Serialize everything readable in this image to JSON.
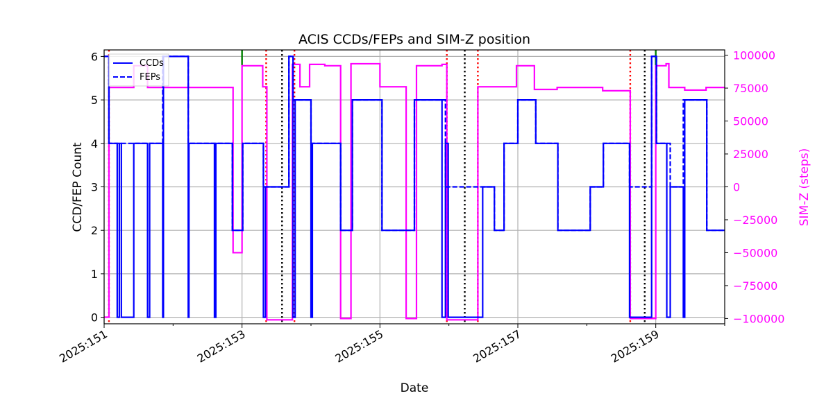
{
  "chart_data": {
    "type": "line",
    "title": "ACIS CCDs/FEPs and SIM-Z position",
    "xlabel": "Date",
    "ylabel": "CCD/FEP Count",
    "y2label": "SIM-Z (steps)",
    "xlim": [
      151.0,
      160.0
    ],
    "ylim": [
      -0.15,
      6.15
    ],
    "y2lim": [
      -104000,
      104000
    ],
    "x_ticks": [
      151,
      153,
      155,
      157,
      159
    ],
    "x_tick_labels": [
      "2025:151",
      "2025:153",
      "2025:155",
      "2025:157",
      "2025:159"
    ],
    "y_ticks": [
      0,
      1,
      2,
      3,
      4,
      5,
      6
    ],
    "y_tick_labels": [
      "0",
      "1",
      "2",
      "3",
      "4",
      "5",
      "6"
    ],
    "y2_ticks": [
      100000,
      75000,
      50000,
      25000,
      0,
      -25000,
      -50000,
      -75000,
      -100000
    ],
    "y2_tick_labels": [
      "100000",
      "75000",
      "50000",
      "25000",
      "0",
      "−25000",
      "−50000",
      "−75000",
      "−100000"
    ],
    "grid": true,
    "legend_position": "top-left",
    "colors": {
      "ccds": "#0000ff",
      "feps": "#0000ff",
      "simz": "#ff00ff",
      "red_lines": "#ff0000",
      "black_lines": "#000000",
      "green_lines": "#008000"
    },
    "series": [
      {
        "name": "CCDs",
        "style": "solid",
        "axis": "left",
        "points": [
          [
            151.0,
            6
          ],
          [
            151.07,
            6
          ],
          [
            151.07,
            4
          ],
          [
            151.19,
            4
          ],
          [
            151.19,
            0
          ],
          [
            151.22,
            0
          ],
          [
            151.22,
            4
          ],
          [
            151.25,
            4
          ],
          [
            151.25,
            0
          ],
          [
            151.43,
            0
          ],
          [
            151.43,
            4
          ],
          [
            151.63,
            4
          ],
          [
            151.63,
            0
          ],
          [
            151.66,
            0
          ],
          [
            151.66,
            4
          ],
          [
            151.85,
            4
          ],
          [
            151.85,
            0
          ],
          [
            151.86,
            0
          ],
          [
            151.86,
            6
          ],
          [
            152.22,
            6
          ],
          [
            152.22,
            0
          ],
          [
            152.23,
            0
          ],
          [
            152.23,
            4
          ],
          [
            152.6,
            4
          ],
          [
            152.6,
            0
          ],
          [
            152.62,
            0
          ],
          [
            152.62,
            4
          ],
          [
            152.86,
            4
          ],
          [
            152.86,
            2
          ],
          [
            153.01,
            2
          ],
          [
            153.01,
            4
          ],
          [
            153.31,
            4
          ],
          [
            153.31,
            0
          ],
          [
            153.34,
            0
          ],
          [
            153.34,
            3
          ],
          [
            153.68,
            3
          ],
          [
            153.68,
            6
          ],
          [
            153.74,
            6
          ],
          [
            153.74,
            0
          ],
          [
            153.77,
            0
          ],
          [
            153.77,
            5
          ],
          [
            154.0,
            5
          ],
          [
            154.0,
            0
          ],
          [
            154.02,
            0
          ],
          [
            154.02,
            4
          ],
          [
            154.43,
            4
          ],
          [
            154.43,
            2
          ],
          [
            154.6,
            2
          ],
          [
            154.6,
            5
          ],
          [
            155.03,
            5
          ],
          [
            155.03,
            2
          ],
          [
            155.5,
            2
          ],
          [
            155.5,
            5
          ],
          [
            155.9,
            5
          ],
          [
            155.9,
            0
          ],
          [
            155.95,
            0
          ],
          [
            155.95,
            4
          ],
          [
            155.99,
            4
          ],
          [
            155.99,
            0
          ],
          [
            156.49,
            0
          ],
          [
            156.49,
            3
          ],
          [
            156.66,
            3
          ],
          [
            156.66,
            2
          ],
          [
            156.8,
            2
          ],
          [
            156.8,
            4
          ],
          [
            157.0,
            4
          ],
          [
            157.0,
            5
          ],
          [
            157.26,
            5
          ],
          [
            157.26,
            4
          ],
          [
            157.58,
            4
          ],
          [
            157.58,
            2
          ],
          [
            158.05,
            2
          ],
          [
            158.05,
            3
          ],
          [
            158.24,
            3
          ],
          [
            158.24,
            4
          ],
          [
            158.62,
            4
          ],
          [
            158.62,
            0
          ],
          [
            158.94,
            0
          ],
          [
            158.94,
            6
          ],
          [
            159.01,
            6
          ],
          [
            159.01,
            4
          ],
          [
            159.16,
            4
          ],
          [
            159.16,
            0
          ],
          [
            159.21,
            0
          ],
          [
            159.21,
            3
          ],
          [
            159.4,
            3
          ],
          [
            159.4,
            0
          ],
          [
            159.42,
            0
          ],
          [
            159.42,
            5
          ],
          [
            159.74,
            5
          ],
          [
            159.74,
            2
          ],
          [
            160.0,
            2
          ]
        ]
      },
      {
        "name": "FEPs",
        "style": "dashed",
        "axis": "left",
        "points": [
          [
            151.0,
            6
          ],
          [
            151.07,
            6
          ],
          [
            151.07,
            4
          ],
          [
            151.85,
            4
          ],
          [
            151.85,
            6
          ],
          [
            152.22,
            6
          ],
          [
            152.22,
            4
          ],
          [
            152.86,
            4
          ],
          [
            152.86,
            2
          ],
          [
            153.01,
            2
          ],
          [
            153.01,
            4
          ],
          [
            153.31,
            4
          ],
          [
            153.31,
            3
          ],
          [
            153.68,
            3
          ],
          [
            153.68,
            6
          ],
          [
            153.74,
            6
          ],
          [
            153.74,
            5
          ],
          [
            154.0,
            5
          ],
          [
            154.0,
            4
          ],
          [
            154.43,
            4
          ],
          [
            154.43,
            2
          ],
          [
            154.6,
            2
          ],
          [
            154.6,
            5
          ],
          [
            155.03,
            5
          ],
          [
            155.03,
            2
          ],
          [
            155.5,
            2
          ],
          [
            155.5,
            5
          ],
          [
            155.95,
            5
          ],
          [
            155.95,
            3
          ],
          [
            156.66,
            3
          ],
          [
            156.66,
            2
          ],
          [
            156.8,
            2
          ],
          [
            156.8,
            4
          ],
          [
            157.0,
            4
          ],
          [
            157.0,
            5
          ],
          [
            157.26,
            5
          ],
          [
            157.26,
            4
          ],
          [
            157.58,
            4
          ],
          [
            157.58,
            2
          ],
          [
            158.05,
            2
          ],
          [
            158.05,
            3
          ],
          [
            158.24,
            3
          ],
          [
            158.24,
            4
          ],
          [
            158.62,
            4
          ],
          [
            158.62,
            3
          ],
          [
            158.94,
            3
          ],
          [
            158.94,
            6
          ],
          [
            159.01,
            6
          ],
          [
            159.01,
            4
          ],
          [
            159.21,
            4
          ],
          [
            159.21,
            3
          ],
          [
            159.4,
            3
          ],
          [
            159.4,
            5
          ],
          [
            159.74,
            5
          ],
          [
            159.74,
            2
          ],
          [
            160.0,
            2
          ]
        ]
      },
      {
        "name": "SIM-Z",
        "style": "solid",
        "axis": "right",
        "points": [
          [
            151.0,
            -99000
          ],
          [
            151.07,
            -99000
          ],
          [
            151.07,
            75500
          ],
          [
            151.43,
            75500
          ],
          [
            151.43,
            92000
          ],
          [
            151.63,
            92000
          ],
          [
            151.63,
            75500
          ],
          [
            152.87,
            75500
          ],
          [
            152.87,
            -50000
          ],
          [
            153.0,
            -50000
          ],
          [
            153.0,
            92000
          ],
          [
            153.3,
            92000
          ],
          [
            153.3,
            76000
          ],
          [
            153.36,
            76000
          ],
          [
            153.36,
            -101000
          ],
          [
            153.73,
            -101000
          ],
          [
            153.73,
            93000
          ],
          [
            153.84,
            93000
          ],
          [
            153.84,
            76000
          ],
          [
            153.98,
            76000
          ],
          [
            153.98,
            93000
          ],
          [
            154.2,
            93000
          ],
          [
            154.2,
            92000
          ],
          [
            154.43,
            92000
          ],
          [
            154.43,
            -100000
          ],
          [
            154.58,
            -100000
          ],
          [
            154.58,
            93500
          ],
          [
            155.0,
            93500
          ],
          [
            155.0,
            76000
          ],
          [
            155.38,
            76000
          ],
          [
            155.38,
            -100000
          ],
          [
            155.53,
            -100000
          ],
          [
            155.53,
            92000
          ],
          [
            155.9,
            92000
          ],
          [
            155.9,
            93000
          ],
          [
            155.97,
            93000
          ],
          [
            155.97,
            -101000
          ],
          [
            156.42,
            -101000
          ],
          [
            156.42,
            76000
          ],
          [
            156.98,
            76000
          ],
          [
            156.98,
            92000
          ],
          [
            157.24,
            92000
          ],
          [
            157.24,
            74000
          ],
          [
            157.57,
            74000
          ],
          [
            157.57,
            75500
          ],
          [
            158.23,
            75500
          ],
          [
            158.23,
            73000
          ],
          [
            158.63,
            73000
          ],
          [
            158.63,
            -100000
          ],
          [
            159.0,
            -100000
          ],
          [
            159.0,
            92000
          ],
          [
            159.15,
            92000
          ],
          [
            159.15,
            93500
          ],
          [
            159.19,
            93500
          ],
          [
            159.19,
            75500
          ],
          [
            159.42,
            75500
          ],
          [
            159.42,
            73500
          ],
          [
            159.73,
            73500
          ],
          [
            159.73,
            75500
          ],
          [
            160.0,
            75500
          ]
        ]
      }
    ],
    "vertical_lines": [
      {
        "x": 151.07,
        "style": "dotted",
        "color": "red"
      },
      {
        "x": 153.35,
        "style": "dotted",
        "color": "red"
      },
      {
        "x": 153.76,
        "style": "dotted",
        "color": "red"
      },
      {
        "x": 155.97,
        "style": "dotted",
        "color": "red"
      },
      {
        "x": 156.42,
        "style": "dotted",
        "color": "red"
      },
      {
        "x": 158.63,
        "style": "dotted",
        "color": "red"
      },
      {
        "x": 153.58,
        "style": "dotted",
        "color": "black"
      },
      {
        "x": 156.23,
        "style": "dotted",
        "color": "black"
      },
      {
        "x": 158.84,
        "style": "dotted",
        "color": "black"
      },
      {
        "x": 153.0,
        "style": "solid",
        "color": "green"
      },
      {
        "x": 159.0,
        "style": "solid",
        "color": "green"
      }
    ]
  }
}
